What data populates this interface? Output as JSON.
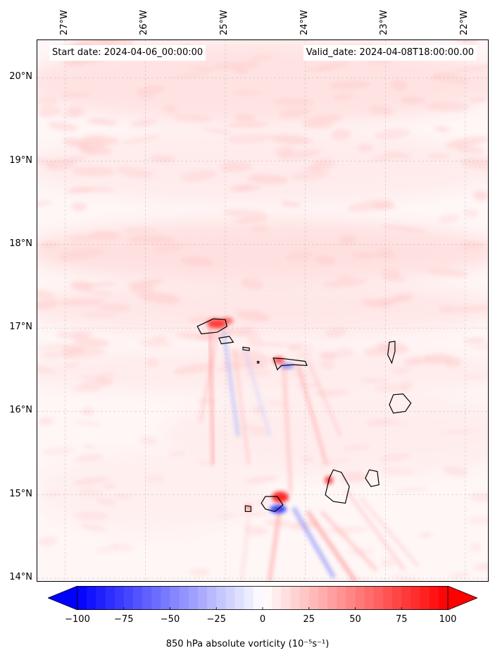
{
  "map": {
    "start_date": "Start date: 2024-04-06_00:00:00",
    "valid_date": "Valid_date: 2024-04-08T18:00:00.00",
    "lon_labels": [
      "27°W",
      "26°W",
      "25°W",
      "24°W",
      "23°W",
      "22°W"
    ],
    "lat_labels": [
      "20°N",
      "19°N",
      "18°N",
      "17°N",
      "16°N",
      "15°N",
      "14°N"
    ],
    "lon_values": [
      -27,
      -26,
      -25,
      -24,
      -23,
      -22
    ],
    "lat_values": [
      20,
      19,
      18,
      17,
      16,
      15,
      14
    ],
    "extent": {
      "lon_min": -27.35,
      "lon_max": -21.7,
      "lat_min": 13.95,
      "lat_max": 20.45
    },
    "gridlines": true,
    "coastline_color": "#000000"
  },
  "colorbar": {
    "title": "850 hPa absolute vorticity (10⁻⁵s⁻¹)",
    "colormap": "bwr",
    "range": [
      -100,
      100
    ],
    "tick_values": [
      -100,
      -75,
      -50,
      -25,
      0,
      25,
      50,
      75,
      100
    ],
    "tick_labels": [
      "−100",
      "−75",
      "−50",
      "−25",
      "0",
      "25",
      "50",
      "75",
      "100"
    ],
    "extend": "both",
    "levels": 40
  }
}
